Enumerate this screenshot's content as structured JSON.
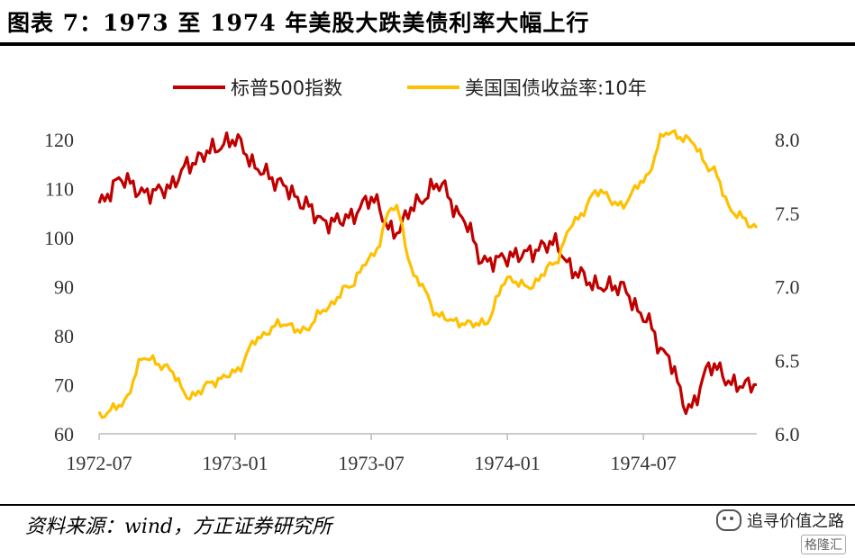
{
  "header": {
    "title": "图表 7：1973 至 1974 年美股大跌美债利率大幅上行"
  },
  "footer": {
    "source": "资料来源：wind，方正证券研究所"
  },
  "watermark": {
    "text": "追寻价值之路",
    "sub": "格隆汇"
  },
  "chart_data": {
    "type": "line",
    "title": "",
    "x_tick_labels": [
      "1972-07",
      "1973-01",
      "1973-07",
      "1974-01",
      "1974-07"
    ],
    "x_ticks": [
      "1972-07",
      "1973-01",
      "1973-07",
      "1974-01",
      "1974-07"
    ],
    "x_range": [
      "1972-07",
      "1974-12"
    ],
    "y_left": {
      "ticks": [
        "60",
        "70",
        "80",
        "90",
        "100",
        "110",
        "120"
      ],
      "ylim": [
        60,
        120
      ]
    },
    "y_right": {
      "ticks": [
        "6.0",
        "6.5",
        "7.0",
        "7.5",
        "8.0"
      ],
      "ylim": [
        6.0,
        8.0
      ]
    },
    "legend_position": "top-center",
    "series": [
      {
        "name": "标普500指数",
        "axis": "left",
        "color": "#C00000",
        "dates": [
          "1972-07",
          "1972-08",
          "1972-09",
          "1972-10",
          "1972-11",
          "1972-12",
          "1973-01",
          "1973-02",
          "1973-03",
          "1973-04",
          "1973-05",
          "1973-06",
          "1973-07",
          "1973-08",
          "1973-09",
          "1973-10",
          "1973-11",
          "1973-12",
          "1974-01",
          "1974-02",
          "1974-03",
          "1974-04",
          "1974-05",
          "1974-06",
          "1974-07",
          "1974-08",
          "1974-09",
          "1974-10",
          "1974-11",
          "1974-12"
        ],
        "values": [
          107,
          112,
          109,
          110,
          115,
          118,
          120,
          114,
          111,
          107,
          103,
          104,
          108,
          101,
          107,
          111,
          104,
          95,
          96,
          97,
          99,
          93,
          90,
          90,
          84,
          76,
          65,
          74,
          70,
          70
        ]
      },
      {
        "name": "美国国债收益率:10年",
        "axis": "right",
        "color": "#FFC000",
        "dates": [
          "1972-07",
          "1972-08",
          "1972-09",
          "1972-10",
          "1972-11",
          "1972-12",
          "1973-01",
          "1973-02",
          "1973-03",
          "1973-04",
          "1973-05",
          "1973-06",
          "1973-07",
          "1973-08",
          "1973-09",
          "1973-10",
          "1973-11",
          "1973-12",
          "1974-01",
          "1974-02",
          "1974-03",
          "1974-04",
          "1974-05",
          "1974-06",
          "1974-07",
          "1974-08",
          "1974-09",
          "1974-10",
          "1974-11",
          "1974-12"
        ],
        "values": [
          6.12,
          6.2,
          6.52,
          6.45,
          6.25,
          6.35,
          6.42,
          6.65,
          6.75,
          6.7,
          6.85,
          7.0,
          7.2,
          7.55,
          7.05,
          6.8,
          6.75,
          6.75,
          7.05,
          7.0,
          7.15,
          7.45,
          7.65,
          7.55,
          7.72,
          8.05,
          8.0,
          7.8,
          7.5,
          7.4
        ]
      }
    ]
  }
}
